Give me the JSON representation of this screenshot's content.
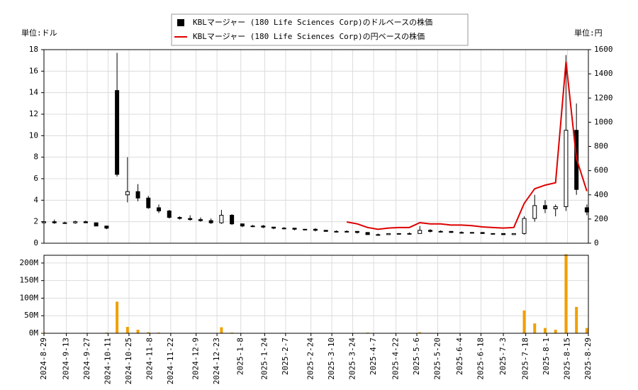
{
  "chart_data": [
    {
      "type": "candlestick",
      "ylabel": "単位:ドル",
      "y2label": "単位:円",
      "legend": "top",
      "grid": true,
      "xlim": [
        "2024-08-29",
        "2025-08-29"
      ],
      "ylim": [
        0,
        18
      ],
      "yticks": [
        0,
        2,
        4,
        6,
        8,
        10,
        12,
        14,
        16,
        18
      ],
      "y2lim": [
        0,
        1600
      ],
      "y2ticks": [
        0,
        200,
        400,
        600,
        800,
        1000,
        1200,
        1400,
        1600
      ],
      "x": [
        "2024-08-29",
        "2024-09-05",
        "2024-09-12",
        "2024-09-19",
        "2024-09-26",
        "2024-10-03",
        "2024-10-10",
        "2024-10-17",
        "2024-10-24",
        "2024-10-31",
        "2024-11-07",
        "2024-11-14",
        "2024-11-21",
        "2024-11-28",
        "2024-12-05",
        "2024-12-12",
        "2024-12-19",
        "2024-12-26",
        "2025-01-02",
        "2025-01-09",
        "2025-01-16",
        "2025-01-23",
        "2025-01-30",
        "2025-02-06",
        "2025-02-13",
        "2025-02-20",
        "2025-02-27",
        "2025-03-06",
        "2025-03-13",
        "2025-03-20",
        "2025-03-27",
        "2025-04-03",
        "2025-04-10",
        "2025-04-17",
        "2025-04-24",
        "2025-05-01",
        "2025-05-08",
        "2025-05-15",
        "2025-05-22",
        "2025-05-29",
        "2025-06-05",
        "2025-06-12",
        "2025-06-19",
        "2025-06-26",
        "2025-07-03",
        "2025-07-10",
        "2025-07-17",
        "2025-07-24",
        "2025-07-31",
        "2025-08-07",
        "2025-08-14",
        "2025-08-21",
        "2025-08-28"
      ],
      "series": [
        {
          "name": "KBLマージャー (180 Life Sciences Corp)のドルベースの株価",
          "color": "#000000",
          "open": [
            1.9,
            2.0,
            1.9,
            1.9,
            2.0,
            1.9,
            1.6,
            14.2,
            4.5,
            4.8,
            4.2,
            3.3,
            3.0,
            2.4,
            2.3,
            2.2,
            2.1,
            1.9,
            2.6,
            1.8,
            1.6,
            1.6,
            1.5,
            1.4,
            1.4,
            1.3,
            1.3,
            1.2,
            1.1,
            1.1,
            1.1,
            1.0,
            0.8,
            0.8,
            0.9,
            0.9,
            0.9,
            1.2,
            1.1,
            1.1,
            1.0,
            1.0,
            1.0,
            0.9,
            0.9,
            0.8,
            0.9,
            2.3,
            3.5,
            3.2,
            3.4,
            10.5,
            3.3
          ],
          "high": [
            2.5,
            2.2,
            2.0,
            2.1,
            2.1,
            1.9,
            1.6,
            17.7,
            8.0,
            5.5,
            4.4,
            3.6,
            3.1,
            2.5,
            2.6,
            2.4,
            2.3,
            3.1,
            2.7,
            1.8,
            1.7,
            1.7,
            1.5,
            1.5,
            1.4,
            1.3,
            1.4,
            1.2,
            1.2,
            1.2,
            1.1,
            1.0,
            0.9,
            0.9,
            0.9,
            1.0,
            1.6,
            1.3,
            1.2,
            1.1,
            1.1,
            1.0,
            1.0,
            0.9,
            0.9,
            0.9,
            2.5,
            4.5,
            4.0,
            3.6,
            17.5,
            13.0,
            3.6
          ],
          "low": [
            1.7,
            1.8,
            1.8,
            1.8,
            1.9,
            1.6,
            1.3,
            6.2,
            3.8,
            3.9,
            3.2,
            2.8,
            2.3,
            2.2,
            2.1,
            2.0,
            1.8,
            1.8,
            1.7,
            1.5,
            1.5,
            1.4,
            1.3,
            1.3,
            1.2,
            1.2,
            1.1,
            1.1,
            1.0,
            1.0,
            0.9,
            0.8,
            0.7,
            0.8,
            0.8,
            0.8,
            0.9,
            1.0,
            1.0,
            1.0,
            1.0,
            0.9,
            0.9,
            0.8,
            0.8,
            0.8,
            0.8,
            2.0,
            2.8,
            2.5,
            3.0,
            4.5,
            2.6
          ],
          "close": [
            2.0,
            1.9,
            1.9,
            2.0,
            1.9,
            1.6,
            1.4,
            6.4,
            4.8,
            4.2,
            3.3,
            3.0,
            2.4,
            2.3,
            2.2,
            2.1,
            1.9,
            2.6,
            1.8,
            1.6,
            1.6,
            1.5,
            1.4,
            1.4,
            1.3,
            1.3,
            1.2,
            1.1,
            1.1,
            1.1,
            1.0,
            0.8,
            0.8,
            0.9,
            0.9,
            0.9,
            1.2,
            1.1,
            1.1,
            1.0,
            1.0,
            1.0,
            0.9,
            0.9,
            0.8,
            0.9,
            2.3,
            3.5,
            3.2,
            3.4,
            10.5,
            5.0,
            2.9
          ]
        },
        {
          "name": "KBLマージャー (180 Life Sciences Corp)の円ベースの株価",
          "color": "#dd0000",
          "axis": "y2",
          "values": [
            null,
            null,
            null,
            null,
            null,
            null,
            null,
            null,
            null,
            null,
            null,
            null,
            null,
            null,
            null,
            null,
            null,
            null,
            null,
            null,
            null,
            null,
            null,
            null,
            null,
            null,
            null,
            null,
            null,
            176,
            160,
            130,
            115,
            125,
            130,
            130,
            170,
            160,
            160,
            150,
            150,
            145,
            135,
            130,
            125,
            130,
            330,
            450,
            480,
            500,
            1500,
            700,
            430
          ]
        }
      ]
    },
    {
      "type": "bar",
      "color": "#f0a000",
      "grid": true,
      "xlim": [
        "2024-08-29",
        "2025-08-29"
      ],
      "xticks": [
        "2024-8-29",
        "2024-9-13",
        "2024-9-27",
        "2024-10-11",
        "2024-10-25",
        "2024-11-8",
        "2024-11-22",
        "2024-12-9",
        "2024-12-23",
        "2025-1-8",
        "2025-1-24",
        "2025-2-7",
        "2025-2-24",
        "2025-3-10",
        "2025-3-24",
        "2025-4-7",
        "2025-4-22",
        "2025-5-6",
        "2025-5-20",
        "2025-6-4",
        "2025-6-18",
        "2025-7-3",
        "2025-7-18",
        "2025-8-1",
        "2025-8-15",
        "2025-8-29"
      ],
      "ylim": [
        0,
        222000000
      ],
      "yticks": [
        {
          "value": 0,
          "label": "0M"
        },
        {
          "value": 50000000,
          "label": "50M"
        },
        {
          "value": 100000000,
          "label": "100M"
        },
        {
          "value": 150000000,
          "label": "150M"
        },
        {
          "value": 200000000,
          "label": "200M"
        }
      ],
      "x": [
        "2024-08-29",
        "2024-09-05",
        "2024-09-12",
        "2024-09-19",
        "2024-09-26",
        "2024-10-03",
        "2024-10-10",
        "2024-10-17",
        "2024-10-24",
        "2024-10-31",
        "2024-11-07",
        "2024-11-14",
        "2024-11-21",
        "2024-11-28",
        "2024-12-05",
        "2024-12-12",
        "2024-12-19",
        "2024-12-26",
        "2025-01-02",
        "2025-01-09",
        "2025-01-16",
        "2025-01-23",
        "2025-01-30",
        "2025-02-06",
        "2025-02-13",
        "2025-02-20",
        "2025-02-27",
        "2025-03-06",
        "2025-03-13",
        "2025-03-20",
        "2025-03-27",
        "2025-04-03",
        "2025-04-10",
        "2025-04-17",
        "2025-04-24",
        "2025-05-01",
        "2025-05-08",
        "2025-05-15",
        "2025-05-22",
        "2025-05-29",
        "2025-06-05",
        "2025-06-12",
        "2025-06-19",
        "2025-06-26",
        "2025-07-03",
        "2025-07-10",
        "2025-07-17",
        "2025-07-24",
        "2025-07-31",
        "2025-08-07",
        "2025-08-14",
        "2025-08-21",
        "2025-08-28"
      ],
      "values": [
        2000000,
        1000000,
        1000000,
        1000000,
        1000000,
        1000000,
        2000000,
        90000000,
        18000000,
        10000000,
        3000000,
        2000000,
        1000000,
        1000000,
        1000000,
        1000000,
        1000000,
        17000000,
        2000000,
        1000000,
        1000000,
        1000000,
        1000000,
        1000000,
        1000000,
        1000000,
        1000000,
        1000000,
        1000000,
        1000000,
        1000000,
        2000000,
        1000000,
        1000000,
        1000000,
        1000000,
        3000000,
        1000000,
        1000000,
        1000000,
        1000000,
        1000000,
        1000000,
        1000000,
        1000000,
        1000000,
        65000000,
        28000000,
        15000000,
        10000000,
        225000000,
        75000000,
        15000000
      ]
    }
  ]
}
